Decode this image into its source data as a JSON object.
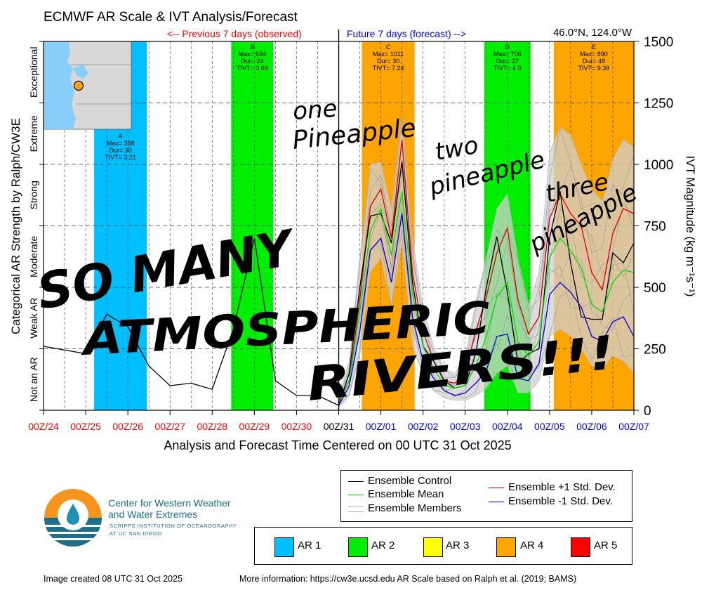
{
  "title": "ECMWF AR Scale & IVT Analysis/Forecast",
  "location": "46.0°N, 124.0°W",
  "previous_label": "<-- Previous 7 days (observed)",
  "future_label": "Future 7 days (forecast) -->",
  "colors": {
    "ar1": "#00bfff",
    "ar2": "#00ee00",
    "ar3": "#ffff00",
    "ar4": "#ffa500",
    "ar5": "#ff0000",
    "control": "#000000",
    "mean": "#00dd00",
    "plus_sd": "#dd0000",
    "minus_sd": "#0000dd",
    "members": "#b0b0b0",
    "past_tick": "#ff0000",
    "center_tick": "#000000",
    "future_tick": "#0000ff",
    "previous_label": "#ff0000",
    "future_label": "#0000ff",
    "logo_text": "#1a6f86"
  },
  "legend": {
    "lines": [
      {
        "label": "Ensemble Control",
        "color": "#000000"
      },
      {
        "label": "Ensemble Mean",
        "color": "#00dd00"
      },
      {
        "label": "Ensemble Members",
        "color": "#b0b0b0"
      },
      {
        "label": "Ensemble +1 Std. Dev.",
        "color": "#dd0000"
      },
      {
        "label": "Ensemble -1 Std. Dev.",
        "color": "#0000dd"
      }
    ],
    "ar_scale": [
      {
        "label": "AR 1",
        "color": "#00bfff"
      },
      {
        "label": "AR 2",
        "color": "#00ee00"
      },
      {
        "label": "AR 3",
        "color": "#ffff00"
      },
      {
        "label": "AR 4",
        "color": "#ffa500"
      },
      {
        "label": "AR 5",
        "color": "#ff0000"
      }
    ]
  },
  "logo": {
    "line1": "Center for Western Weather",
    "line2": "and Water Extremes",
    "line3": "SCRIPPS INSTITUTION OF OCEANOGRAPHY",
    "line4": "AT UC SAN DIEGO"
  },
  "footer_left": "Image created 08 UTC 31 Oct 2025",
  "footer_right": "More information: https://cw3e.ucsd.edu AR Scale based on Ralph et al. (2019; BAMS)",
  "annotations": [
    "one",
    "Pineapple",
    "two",
    "pineapple",
    "three",
    "pineapple",
    "SO MANY",
    "ATMOSPHERIC",
    "RIVERS!!!"
  ],
  "chart_data": {
    "type": "line",
    "xlabel": "Analysis and Forecast Time Centered on 00 UTC 31 Oct 2025",
    "ylabel_right": "IVT Magnitude (kg m⁻¹s⁻¹)",
    "ylabel_left": "Categorical AR Strength by Ralph/CW3E",
    "ylim": [
      0,
      1500
    ],
    "yticks": [
      0,
      250,
      500,
      750,
      1000,
      1250,
      1500
    ],
    "xlim": [
      0,
      14
    ],
    "xtick_labels": [
      "00Z/24",
      "00Z/25",
      "00Z/26",
      "00Z/27",
      "00Z/28",
      "00Z/29",
      "00Z/30",
      "00Z/31",
      "00Z/01",
      "00Z/02",
      "00Z/03",
      "00Z/04",
      "00Z/05",
      "00Z/06",
      "00Z/07"
    ],
    "categories_left": [
      "Not an AR",
      "Weak AR",
      "Moderate",
      "Strong",
      "Extreme",
      "Exceptional"
    ],
    "grid": true,
    "ar_events": [
      {
        "letter": "A",
        "start": 1.2,
        "end": 2.45,
        "scale": "ar1",
        "max": "388",
        "dur": "30",
        "tivt": "3.21"
      },
      {
        "letter": "B",
        "start": 4.45,
        "end": 5.45,
        "scale": "ar2",
        "max": "694",
        "dur": "24",
        "tivt": "3.69"
      },
      {
        "letter": "C",
        "start": 7.55,
        "end": 8.8,
        "scale": "ar4",
        "max": "1011",
        "dur": "30",
        "tivt": "7.24"
      },
      {
        "letter": "D",
        "start": 10.45,
        "end": 11.55,
        "scale": "ar2",
        "max": "706",
        "dur": "27",
        "tivt": "4.0"
      },
      {
        "letter": "E",
        "start": 12.1,
        "end": 14.0,
        "scale": "ar4",
        "max": "890",
        "dur": "48",
        "tivt": "9.39"
      }
    ],
    "series": [
      {
        "name": "Ensemble Control (observed)",
        "x": [
          0.0,
          1.0,
          1.5,
          2.0,
          2.5,
          3.0,
          3.5,
          4.0,
          4.5,
          5.0,
          5.5,
          6.0,
          6.5,
          7.0
        ],
        "values": [
          260,
          230,
          390,
          340,
          180,
          100,
          110,
          85,
          330,
          700,
          120,
          60,
          60,
          20
        ]
      },
      {
        "name": "Ensemble +1 Std. Dev.",
        "x": [
          7.0,
          7.25,
          7.5,
          7.75,
          8.0,
          8.25,
          8.5,
          8.75,
          9.0,
          9.25,
          9.5,
          9.75,
          10.0,
          10.25,
          10.5,
          10.75,
          11.0,
          11.25,
          11.5,
          11.75,
          12.0,
          12.25,
          12.5,
          12.75,
          13.0,
          13.25,
          13.5,
          13.75,
          14.0
        ],
        "values": [
          40,
          120,
          450,
          830,
          900,
          700,
          1100,
          560,
          320,
          200,
          120,
          110,
          150,
          320,
          460,
          640,
          740,
          450,
          310,
          380,
          780,
          880,
          800,
          750,
          560,
          490,
          720,
          820,
          800
        ]
      },
      {
        "name": "Ensemble Control",
        "x": [
          7.0,
          7.25,
          7.5,
          7.75,
          8.0,
          8.25,
          8.5,
          8.75,
          9.0,
          9.25,
          9.5,
          9.75,
          10.0,
          10.25,
          10.5,
          10.75,
          11.0,
          11.25,
          11.5,
          11.75,
          12.0,
          12.25,
          12.5,
          12.75,
          13.0,
          13.25,
          13.5,
          13.75,
          14.0
        ],
        "values": [
          20,
          150,
          500,
          790,
          800,
          680,
          1011,
          520,
          260,
          200,
          120,
          90,
          100,
          230,
          500,
          706,
          480,
          190,
          230,
          250,
          700,
          890,
          600,
          380,
          370,
          370,
          640,
          600,
          680
        ]
      },
      {
        "name": "Ensemble Mean",
        "x": [
          7.0,
          7.25,
          7.5,
          7.75,
          8.0,
          8.25,
          8.5,
          8.75,
          9.0,
          9.25,
          9.5,
          9.75,
          10.0,
          10.25,
          10.5,
          10.75,
          11.0,
          11.25,
          11.5,
          11.75,
          12.0,
          12.25,
          12.5,
          12.75,
          13.0,
          13.25,
          13.5,
          13.75,
          14.0
        ],
        "values": [
          30,
          120,
          400,
          730,
          820,
          630,
          890,
          470,
          260,
          170,
          100,
          90,
          100,
          180,
          300,
          460,
          520,
          280,
          220,
          280,
          620,
          700,
          650,
          580,
          430,
          400,
          520,
          570,
          560
        ]
      },
      {
        "name": "Ensemble -1 Std. Dev.",
        "x": [
          7.0,
          7.25,
          7.5,
          7.75,
          8.0,
          8.25,
          8.5,
          8.75,
          9.0,
          9.25,
          9.5,
          9.75,
          10.0,
          10.25,
          10.5,
          10.75,
          11.0,
          11.25,
          11.5,
          11.75,
          12.0,
          12.25,
          12.5,
          12.75,
          13.0,
          13.25,
          13.5,
          13.75,
          14.0
        ],
        "values": [
          20,
          100,
          320,
          650,
          700,
          520,
          800,
          380,
          200,
          130,
          80,
          60,
          70,
          110,
          160,
          300,
          310,
          130,
          120,
          190,
          470,
          520,
          480,
          420,
          300,
          280,
          360,
          380,
          300
        ]
      }
    ],
    "member_band": {
      "x": [
        7.0,
        7.25,
        7.5,
        7.75,
        8.0,
        8.25,
        8.5,
        8.75,
        9.0,
        9.25,
        9.5,
        9.75,
        10.0,
        10.25,
        10.5,
        10.75,
        11.0,
        11.25,
        11.5,
        11.75,
        12.0,
        12.25,
        12.5,
        12.75,
        13.0,
        13.25,
        13.5,
        13.75,
        14.0
      ],
      "upper": [
        60,
        200,
        620,
        1000,
        1010,
        820,
        1200,
        700,
        420,
        260,
        170,
        150,
        220,
        440,
        620,
        820,
        880,
        620,
        430,
        560,
        1050,
        1150,
        1120,
        1000,
        900,
        850,
        1020,
        1100,
        1070
      ],
      "lower": [
        10,
        60,
        220,
        560,
        620,
        420,
        680,
        260,
        140,
        80,
        50,
        40,
        40,
        60,
        90,
        150,
        180,
        70,
        70,
        120,
        300,
        330,
        300,
        250,
        180,
        170,
        220,
        200,
        150
      ]
    }
  }
}
